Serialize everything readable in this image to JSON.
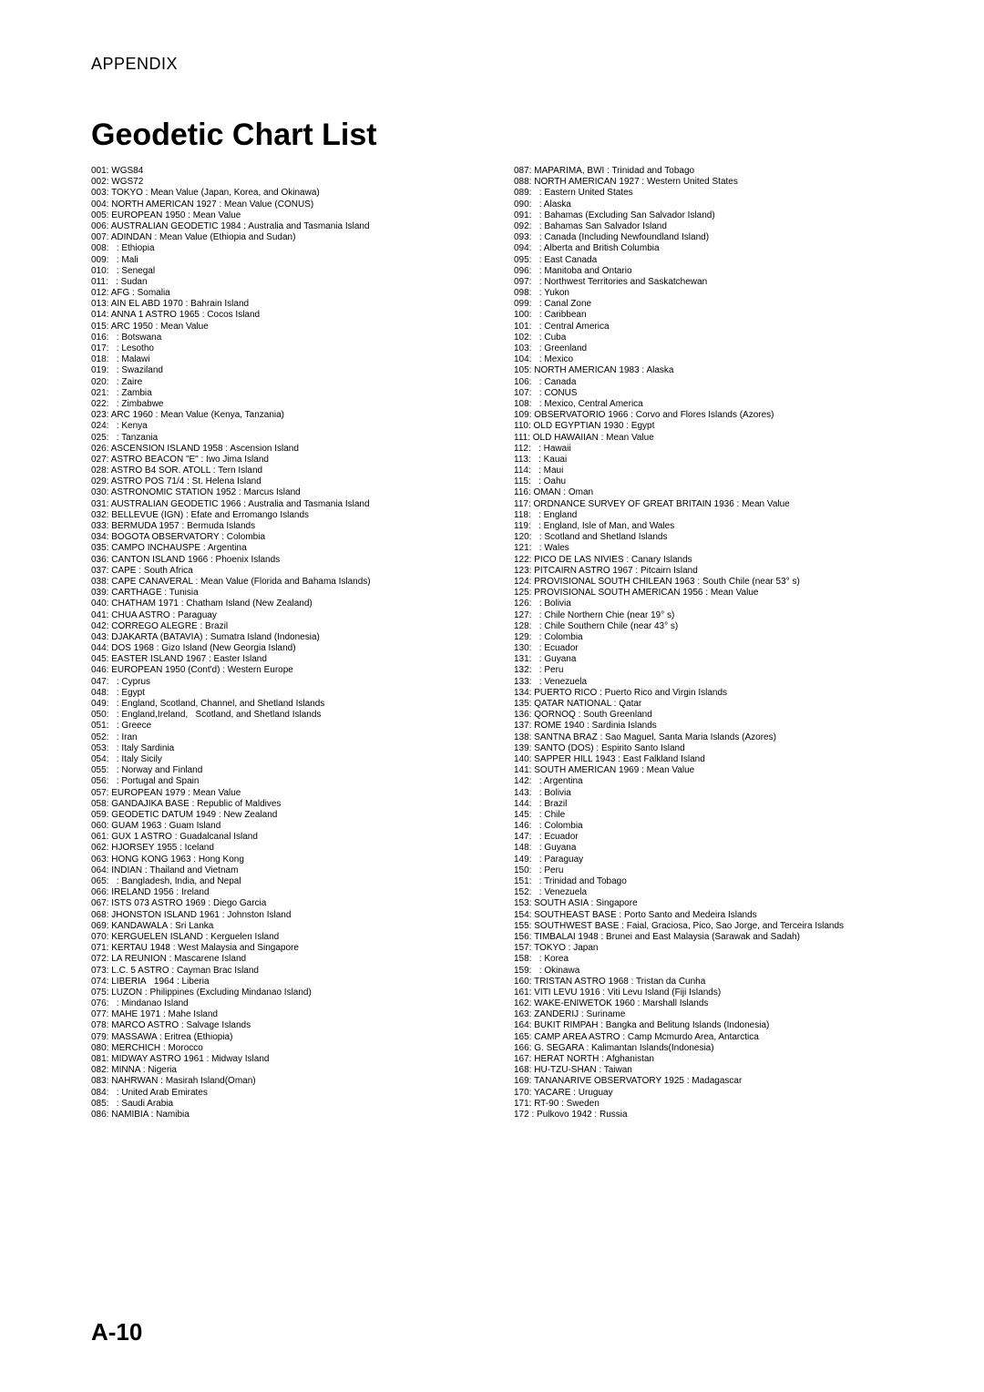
{
  "header": "APPENDIX",
  "title": "Geodetic Chart List",
  "footer": "A-10",
  "left": [
    {
      "c": "001:",
      "t": "WGS84"
    },
    {
      "c": "002:",
      "t": "WGS72"
    },
    {
      "c": "003:",
      "t": "TOKYO : Mean Value (Japan, Korea, and Okinawa)"
    },
    {
      "c": "004:",
      "t": "NORTH AMERICAN 1927 : Mean Value (CONUS)"
    },
    {
      "c": "005:",
      "t": "EUROPEAN 1950 : Mean Value"
    },
    {
      "c": "006:",
      "t": "AUSTRALIAN GEODETIC 1984 : Australia and Tasmania Island"
    },
    {
      "c": "007:",
      "t": "ADINDAN : Mean Value (Ethiopia and Sudan)"
    },
    {
      "c": "008:",
      "t": "  : Ethiopia"
    },
    {
      "c": "009:",
      "t": "  : Mali"
    },
    {
      "c": "010:",
      "t": "  : Senegal"
    },
    {
      "c": "011:",
      "t": "  : Sudan"
    },
    {
      "c": "012:",
      "t": "AFG : Somalia"
    },
    {
      "c": "013:",
      "t": "AIN EL ABD 1970 : Bahrain Island"
    },
    {
      "c": "014:",
      "t": "ANNA 1 ASTRO 1965 : Cocos Island"
    },
    {
      "c": "015:",
      "t": "ARC 1950 : Mean Value"
    },
    {
      "c": "016:",
      "t": "  : Botswana"
    },
    {
      "c": "017:",
      "t": "  : Lesotho"
    },
    {
      "c": "018:",
      "t": "  : Malawi"
    },
    {
      "c": "019:",
      "t": "  : Swaziland"
    },
    {
      "c": "020:",
      "t": "  : Zaire"
    },
    {
      "c": "021:",
      "t": "  : Zambia"
    },
    {
      "c": "022:",
      "t": "  : Zimbabwe"
    },
    {
      "c": "023:",
      "t": "ARC 1960 : Mean Value (Kenya, Tanzania)"
    },
    {
      "c": "024:",
      "t": "  : Kenya"
    },
    {
      "c": "025:",
      "t": "  : Tanzania"
    },
    {
      "c": "026:",
      "t": "ASCENSION ISLAND 1958 : Ascension Island"
    },
    {
      "c": "027:",
      "t": "ASTRO BEACON \"E\" : Iwo Jima Island"
    },
    {
      "c": "028:",
      "t": "ASTRO B4 SOR. ATOLL : Tern Island"
    },
    {
      "c": "029:",
      "t": "ASTRO POS 71/4 : St. Helena Island"
    },
    {
      "c": "030:",
      "t": "ASTRONOMIC STATION 1952 : Marcus Island"
    },
    {
      "c": "031:",
      "t": "AUSTRALIAN GEODETIC 1966 : Australia and Tasmania Island"
    },
    {
      "c": "032:",
      "t": "BELLEVUE (IGN) : Efate and Erromango Islands"
    },
    {
      "c": "033:",
      "t": "BERMUDA 1957 : Bermuda Islands"
    },
    {
      "c": "034:",
      "t": "BOGOTA OBSERVATORY : Colombia"
    },
    {
      "c": "035:",
      "t": "CAMPO INCHAUSPE : Argentina"
    },
    {
      "c": "036:",
      "t": "CANTON ISLAND 1966 : Phoenix Islands"
    },
    {
      "c": "037:",
      "t": "CAPE : South Africa"
    },
    {
      "c": "038:",
      "t": "CAPE CANAVERAL : Mean Value (Florida and Bahama Islands)"
    },
    {
      "c": "039:",
      "t": "CARTHAGE : Tunisia"
    },
    {
      "c": "040:",
      "t": "CHATHAM 1971 : Chatham Island (New Zealand)"
    },
    {
      "c": "041:",
      "t": "CHUA ASTRO : Paraguay"
    },
    {
      "c": "042:",
      "t": "CORREGO ALEGRE : Brazil"
    },
    {
      "c": "043:",
      "t": "DJAKARTA (BATAVIA) : Sumatra Island (Indonesia)"
    },
    {
      "c": "044:",
      "t": "DOS 1968 : Gizo Island (New Georgia Island)"
    },
    {
      "c": "045:",
      "t": "EASTER ISLAND 1967 : Easter Island"
    },
    {
      "c": "046:",
      "t": "EUROPEAN 1950 (Cont'd) : Western Europe"
    },
    {
      "c": "047:",
      "t": "  : Cyprus"
    },
    {
      "c": "048:",
      "t": "  : Egypt"
    },
    {
      "c": "049:",
      "t": "  : England, Scotland, Channel, and Shetland Islands"
    },
    {
      "c": "050:",
      "t": "  : England,Ireland,   Scotland, and Shetland Islands"
    },
    {
      "c": "051:",
      "t": "  : Greece"
    },
    {
      "c": "052:",
      "t": "  : Iran"
    },
    {
      "c": "053:",
      "t": "  : Italy Sardinia"
    },
    {
      "c": "054:",
      "t": "  : Italy Sicily"
    },
    {
      "c": "055:",
      "t": "  : Norway and Finland"
    },
    {
      "c": "056:",
      "t": "  : Portugal and Spain"
    },
    {
      "c": "057:",
      "t": "EUROPEAN 1979 : Mean Value"
    },
    {
      "c": "058:",
      "t": "GANDAJIKA BASE : Republic of Maldives"
    },
    {
      "c": "059:",
      "t": "GEODETIC DATUM 1949 : New Zealand"
    },
    {
      "c": "060:",
      "t": "GUAM 1963 : Guam Island"
    },
    {
      "c": "061:",
      "t": "GUX 1 ASTRO : Guadalcanal Island"
    },
    {
      "c": "062:",
      "t": "HJORSEY 1955 : Iceland"
    },
    {
      "c": "063:",
      "t": "HONG KONG 1963 : Hong Kong"
    },
    {
      "c": "064:",
      "t": "INDIAN : Thailand and Vietnam"
    },
    {
      "c": "065:",
      "t": "  : Bangladesh, India, and Nepal"
    },
    {
      "c": "066:",
      "t": "IRELAND 1956 : Ireland"
    },
    {
      "c": "067:",
      "t": "ISTS 073 ASTRO 1969 : Diego Garcia"
    },
    {
      "c": "068:",
      "t": "JHONSTON ISLAND 1961 : Johnston Island"
    },
    {
      "c": "069:",
      "t": "KANDAWALA : Sri Lanka"
    },
    {
      "c": "070:",
      "t": "KERGUELEN ISLAND : Kerguelen Island"
    },
    {
      "c": "071:",
      "t": "KERTAU 1948 : West Malaysia and Singapore"
    },
    {
      "c": "072:",
      "t": "LA REUNION : Mascarene Island"
    },
    {
      "c": "073:",
      "t": "L.C. 5 ASTRO : Cayman Brac Island"
    },
    {
      "c": "074:",
      "t": "LIBERIA   1964 : Liberia"
    },
    {
      "c": "075:",
      "t": "LUZON : Philippines (Excluding Mindanao Island)"
    },
    {
      "c": "076:",
      "t": "  : Mindanao Island"
    },
    {
      "c": "077:",
      "t": "MAHE 1971 : Mahe Island"
    },
    {
      "c": "078:",
      "t": "MARCO ASTRO : Salvage Islands"
    },
    {
      "c": "079:",
      "t": "MASSAWA : Eritrea (Ethiopia)"
    },
    {
      "c": "080:",
      "t": "MERCHICH : Morocco"
    },
    {
      "c": "081:",
      "t": "MIDWAY ASTRO 1961 : Midway Island"
    },
    {
      "c": "082:",
      "t": "MINNA : Nigeria"
    },
    {
      "c": "083:",
      "t": "NAHRWAN : Masirah Island(Oman)"
    },
    {
      "c": "084:",
      "t": "  : United Arab Emirates"
    },
    {
      "c": "085:",
      "t": "  : Saudi Arabia"
    },
    {
      "c": "086:",
      "t": "NAMIBIA : Namibia"
    }
  ],
  "right": [
    {
      "c": "087:",
      "t": "MAPARIMA, BWI : Trinidad and Tobago"
    },
    {
      "c": "088:",
      "t": "NORTH AMERICAN 1927 : Western United States"
    },
    {
      "c": "089:",
      "t": "  : Eastern United States"
    },
    {
      "c": "090:",
      "t": "  : Alaska"
    },
    {
      "c": "091:",
      "t": "  : Bahamas (Excluding San Salvador Island)"
    },
    {
      "c": "092:",
      "t": "  : Bahamas San Salvador Island"
    },
    {
      "c": "093:",
      "t": "  : Canada (Including Newfoundland Island)"
    },
    {
      "c": "094:",
      "t": "  : Alberta and British Columbia"
    },
    {
      "c": "095:",
      "t": "  : East Canada"
    },
    {
      "c": "096:",
      "t": "  : Manitoba and Ontario"
    },
    {
      "c": "097:",
      "t": "  : Northwest Territories and Saskatchewan"
    },
    {
      "c": "098:",
      "t": "  : Yukon"
    },
    {
      "c": "099:",
      "t": "  : Canal Zone"
    },
    {
      "c": "100:",
      "t": "  : Caribbean"
    },
    {
      "c": "101:",
      "t": "  : Central America"
    },
    {
      "c": "102:",
      "t": "  : Cuba"
    },
    {
      "c": "103:",
      "t": "  : Greenland"
    },
    {
      "c": "104:",
      "t": "  : Mexico"
    },
    {
      "c": "105:",
      "t": "NORTH AMERICAN 1983 : Alaska"
    },
    {
      "c": "106:",
      "t": "  : Canada"
    },
    {
      "c": "107:",
      "t": "  : CONUS"
    },
    {
      "c": "108:",
      "t": "  : Mexico, Central America"
    },
    {
      "c": "109:",
      "t": "OBSERVATORIO 1966 : Corvo and Flores Islands (Azores)"
    },
    {
      "c": "110:",
      "t": "OLD EGYPTIAN 1930 : Egypt"
    },
    {
      "c": "111:",
      "t": "OLD HAWAIIAN : Mean Value"
    },
    {
      "c": "112:",
      "t": "  : Hawaii"
    },
    {
      "c": "113:",
      "t": "  : Kauai"
    },
    {
      "c": "114:",
      "t": "  : Maui"
    },
    {
      "c": "115:",
      "t": "  : Oahu"
    },
    {
      "c": "116:",
      "t": "OMAN : Oman"
    },
    {
      "c": "117:",
      "t": "ORDNANCE SURVEY OF GREAT BRITAIN 1936 : Mean Value"
    },
    {
      "c": "118:",
      "t": "  : England"
    },
    {
      "c": "119:",
      "t": "  : England, Isle of Man, and Wales"
    },
    {
      "c": "120:",
      "t": "  : Scotland and Shetland Islands"
    },
    {
      "c": "121:",
      "t": "  : Wales"
    },
    {
      "c": "122:",
      "t": "PICO DE LAS NIVIES : Canary Islands"
    },
    {
      "c": "123:",
      "t": "PITCAIRN ASTRO 1967 : Pitcairn Island"
    },
    {
      "c": "124:",
      "t": "PROVISIONAL SOUTH CHILEAN 1963 : South Chile (near 53° s)"
    },
    {
      "c": "125:",
      "t": "PROVISIONAL SOUTH AMERICAN 1956 : Mean Value"
    },
    {
      "c": "126:",
      "t": "  : Bolivia"
    },
    {
      "c": "127:",
      "t": "  : Chile Northern Chie (near 19° s)"
    },
    {
      "c": "128:",
      "t": "  : Chile Southern Chile (near 43° s)"
    },
    {
      "c": "129:",
      "t": "  : Colombia"
    },
    {
      "c": "130:",
      "t": "  : Ecuador"
    },
    {
      "c": "131:",
      "t": "  : Guyana"
    },
    {
      "c": "132:",
      "t": "  : Peru"
    },
    {
      "c": "133:",
      "t": "  : Venezuela"
    },
    {
      "c": "134:",
      "t": "PUERTO RICO : Puerto Rico and Virgin Islands"
    },
    {
      "c": "135:",
      "t": "QATAR NATIONAL : Qatar"
    },
    {
      "c": "136:",
      "t": "QORNOQ : South Greenland"
    },
    {
      "c": "137:",
      "t": "ROME 1940 : Sardinia Islands"
    },
    {
      "c": "138:",
      "t": "SANTNA BRAZ : Sao Maguel, Santa Maria Islands (Azores)"
    },
    {
      "c": "139:",
      "t": "SANTO (DOS) : Espirito Santo Island"
    },
    {
      "c": "140:",
      "t": "SAPPER HILL 1943 : East Falkland Island"
    },
    {
      "c": "141:",
      "t": "SOUTH AMERICAN 1969 : Mean Value"
    },
    {
      "c": "142:",
      "t": "  : Argentina"
    },
    {
      "c": "143:",
      "t": "  : Bolivia"
    },
    {
      "c": "144:",
      "t": "  : Brazil"
    },
    {
      "c": "145:",
      "t": "  : Chile"
    },
    {
      "c": "146:",
      "t": "  : Colombia"
    },
    {
      "c": "147:",
      "t": "  : Ecuador"
    },
    {
      "c": "148:",
      "t": "  : Guyana"
    },
    {
      "c": "149:",
      "t": "  : Paraguay"
    },
    {
      "c": "150:",
      "t": "  : Peru"
    },
    {
      "c": "151:",
      "t": "  : Trinidad and Tobago"
    },
    {
      "c": "152:",
      "t": "  : Venezuela"
    },
    {
      "c": "153:",
      "t": "SOUTH ASIA : Singapore"
    },
    {
      "c": "154:",
      "t": "SOUTHEAST BASE : Porto Santo and Medeira Islands"
    },
    {
      "c": "155:",
      "t": "SOUTHWEST BASE : Faial, Graciosa, Pico, Sao Jorge, and Terceira Islands"
    },
    {
      "c": "156:",
      "t": "TIMBALAI 1948 : Brunei and East Malaysia (Sarawak and Sadah)"
    },
    {
      "c": "157:",
      "t": "TOKYO : Japan"
    },
    {
      "c": "158:",
      "t": "  : Korea"
    },
    {
      "c": "159:",
      "t": "  : Okinawa"
    },
    {
      "c": "160:",
      "t": "TRISTAN ASTRO 1968 : Tristan da Cunha"
    },
    {
      "c": "161:",
      "t": "VITI LEVU 1916 : Viti Levu Island (Fiji Islands)"
    },
    {
      "c": "162:",
      "t": "WAKE-ENIWETOK 1960 : Marshall Islands"
    },
    {
      "c": "163:",
      "t": "ZANDERIJ : Suriname"
    },
    {
      "c": "164:",
      "t": "BUKIT RIMPAH : Bangka and Belitung Islands (Indonesia)"
    },
    {
      "c": "165:",
      "t": "CAMP AREA ASTRO : Camp Mcmurdo Area, Antarctica"
    },
    {
      "c": "166:",
      "t": "G. SEGARA : Kalimantan Islands(Indonesia)"
    },
    {
      "c": "167:",
      "t": "HERAT NORTH : Afghanistan"
    },
    {
      "c": "168:",
      "t": "HU-TZU-SHAN : Taiwan"
    },
    {
      "c": "169:",
      "t": "TANANARIVE OBSERVATORY 1925 : Madagascar"
    },
    {
      "c": "170:",
      "t": "YACARE : Uruguay"
    },
    {
      "c": "171:",
      "t": "RT-90 : Sweden"
    },
    {
      "c": "172 :",
      "t": " Pulkovo 1942 : Russia"
    }
  ]
}
